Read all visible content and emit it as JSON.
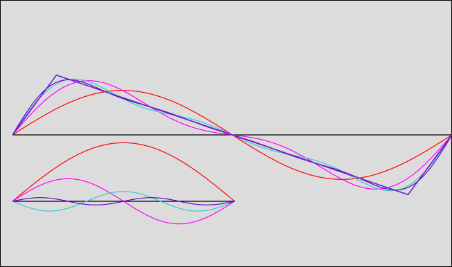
{
  "colors": {
    "background": "#dcdcdc",
    "border": "#000000",
    "axis": "#000000",
    "fundamental": "#ff0000",
    "harmonic2": "#ff00ff",
    "harmonic3": "#33cccc",
    "harmonic4": "#6600cc",
    "exact": "#6622cc"
  },
  "chart_data": [
    {
      "type": "line",
      "title": "",
      "xlabel": "",
      "ylabel": "",
      "xlim": [
        0,
        2
      ],
      "ylim": [
        -2.1,
        2.1
      ],
      "grid": false,
      "legend": "none",
      "description": "",
      "series": [
        {
          "key": "fundamental",
          "terms": 1,
          "color_key": "fundamental"
        },
        {
          "key": "sum2",
          "terms": 2,
          "color_key": "harmonic2"
        },
        {
          "key": "sum3",
          "terms": 3,
          "color_key": "harmonic3"
        },
        {
          "key": "sum4",
          "terms": 4,
          "color_key": "harmonic4"
        },
        {
          "key": "target",
          "points": [
            [
              0,
              0
            ],
            [
              0.2,
              1.8
            ],
            [
              1.8,
              -1.8
            ],
            [
              2,
              0
            ]
          ],
          "color_key": "exact"
        }
      ]
    },
    {
      "type": "line",
      "title": "",
      "xlabel": "",
      "ylabel": "",
      "xlim": [
        0,
        1
      ],
      "ylim": [
        -1,
        1
      ],
      "grid": false,
      "legend": "none",
      "series": [
        {
          "key": "mode1",
          "harmonic": 1,
          "amplitude": 1.459,
          "color_key": "fundamental"
        },
        {
          "key": "mode2",
          "harmonic": 2,
          "amplitude": 0.563,
          "color_key": "harmonic2"
        },
        {
          "key": "mode3",
          "harmonic": 3,
          "amplitude": -0.243,
          "color_key": "harmonic3"
        },
        {
          "key": "mode4",
          "harmonic": 4,
          "amplitude": 0.091,
          "color_key": "harmonic4"
        }
      ]
    }
  ]
}
